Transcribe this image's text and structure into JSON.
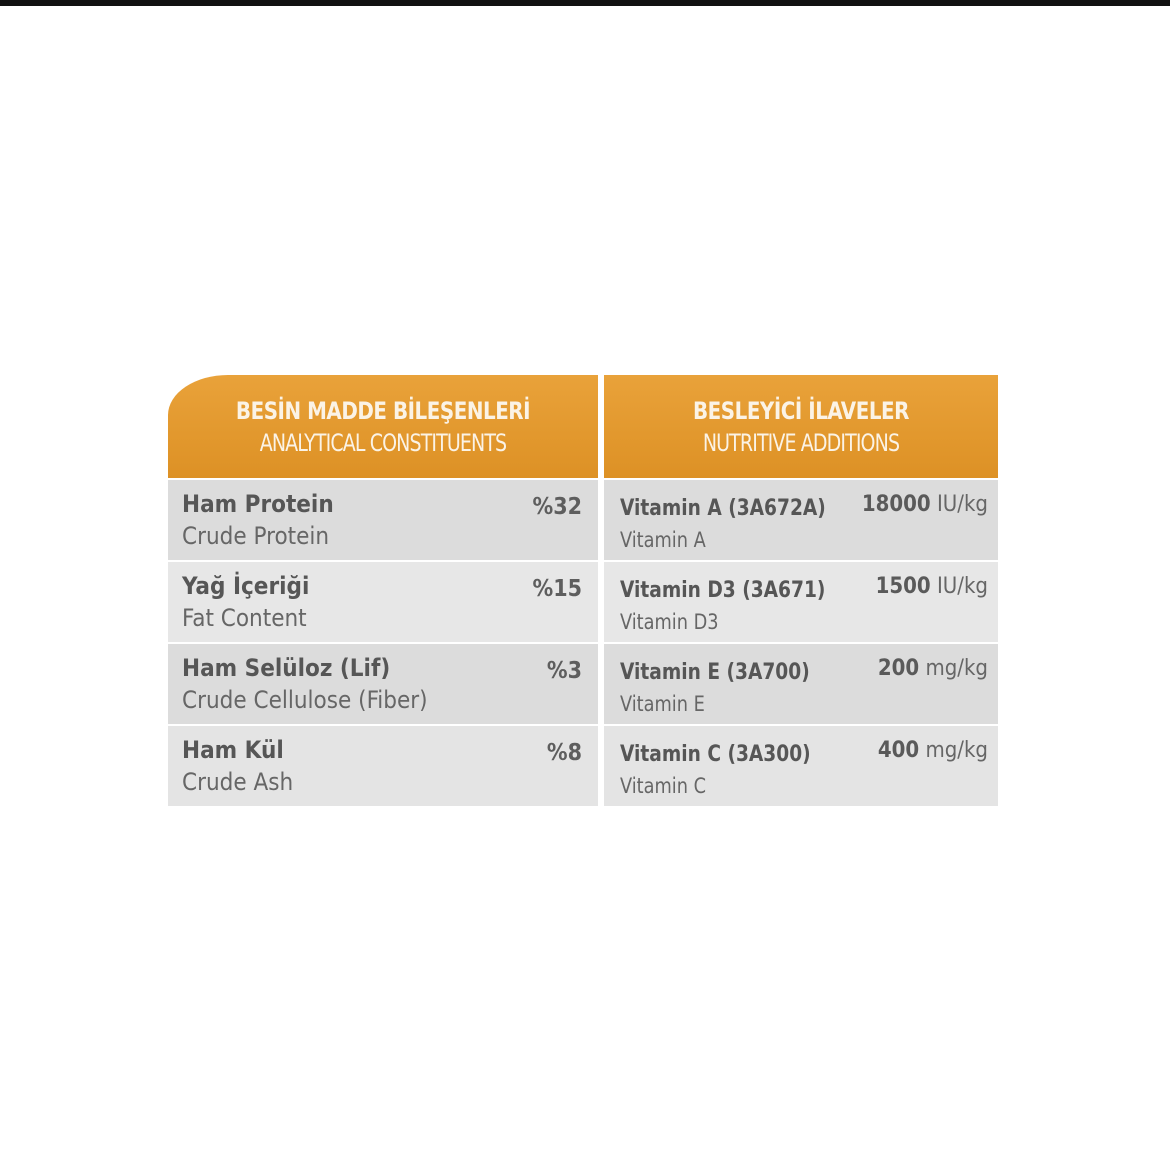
{
  "analytical": {
    "title_tr": "BESİN MADDE BİLEŞENLERİ",
    "title_en": "ANALYTICAL CONSTITUENTS",
    "rows": [
      {
        "name_tr": "Ham Protein",
        "name_en": "Crude Protein",
        "value": "%32"
      },
      {
        "name_tr": "Yağ İçeriği",
        "name_en": "Fat Content",
        "value": "%15"
      },
      {
        "name_tr": "Ham Selüloz (Lif)",
        "name_en": "Crude Cellulose (Fiber)",
        "value": "%3"
      },
      {
        "name_tr": "Ham Kül",
        "name_en": "Crude Ash",
        "value": "%8"
      }
    ]
  },
  "nutritive": {
    "title_tr": "BESLEYİCİ İLAVELER",
    "title_en": "NUTRITIVE ADDITIONS",
    "rows": [
      {
        "name_tr": "Vitamin A (3A672A)",
        "name_en": "Vitamin A",
        "amount": "18000",
        "unit": "IU/kg"
      },
      {
        "name_tr": "Vitamin D3 (3A671)",
        "name_en": "Vitamin D3",
        "amount": "1500",
        "unit": "IU/kg"
      },
      {
        "name_tr": "Vitamin E (3A700)",
        "name_en": "Vitamin E",
        "amount": "200",
        "unit": "mg/kg"
      },
      {
        "name_tr": "Vitamin C (3A300)",
        "name_en": "Vitamin C",
        "amount": "400",
        "unit": "mg/kg"
      }
    ]
  },
  "colors": {
    "header": "#e39a2b",
    "row_dark": "#dcdcdc",
    "row_light": "#e7e7e7",
    "text": "#555555"
  }
}
